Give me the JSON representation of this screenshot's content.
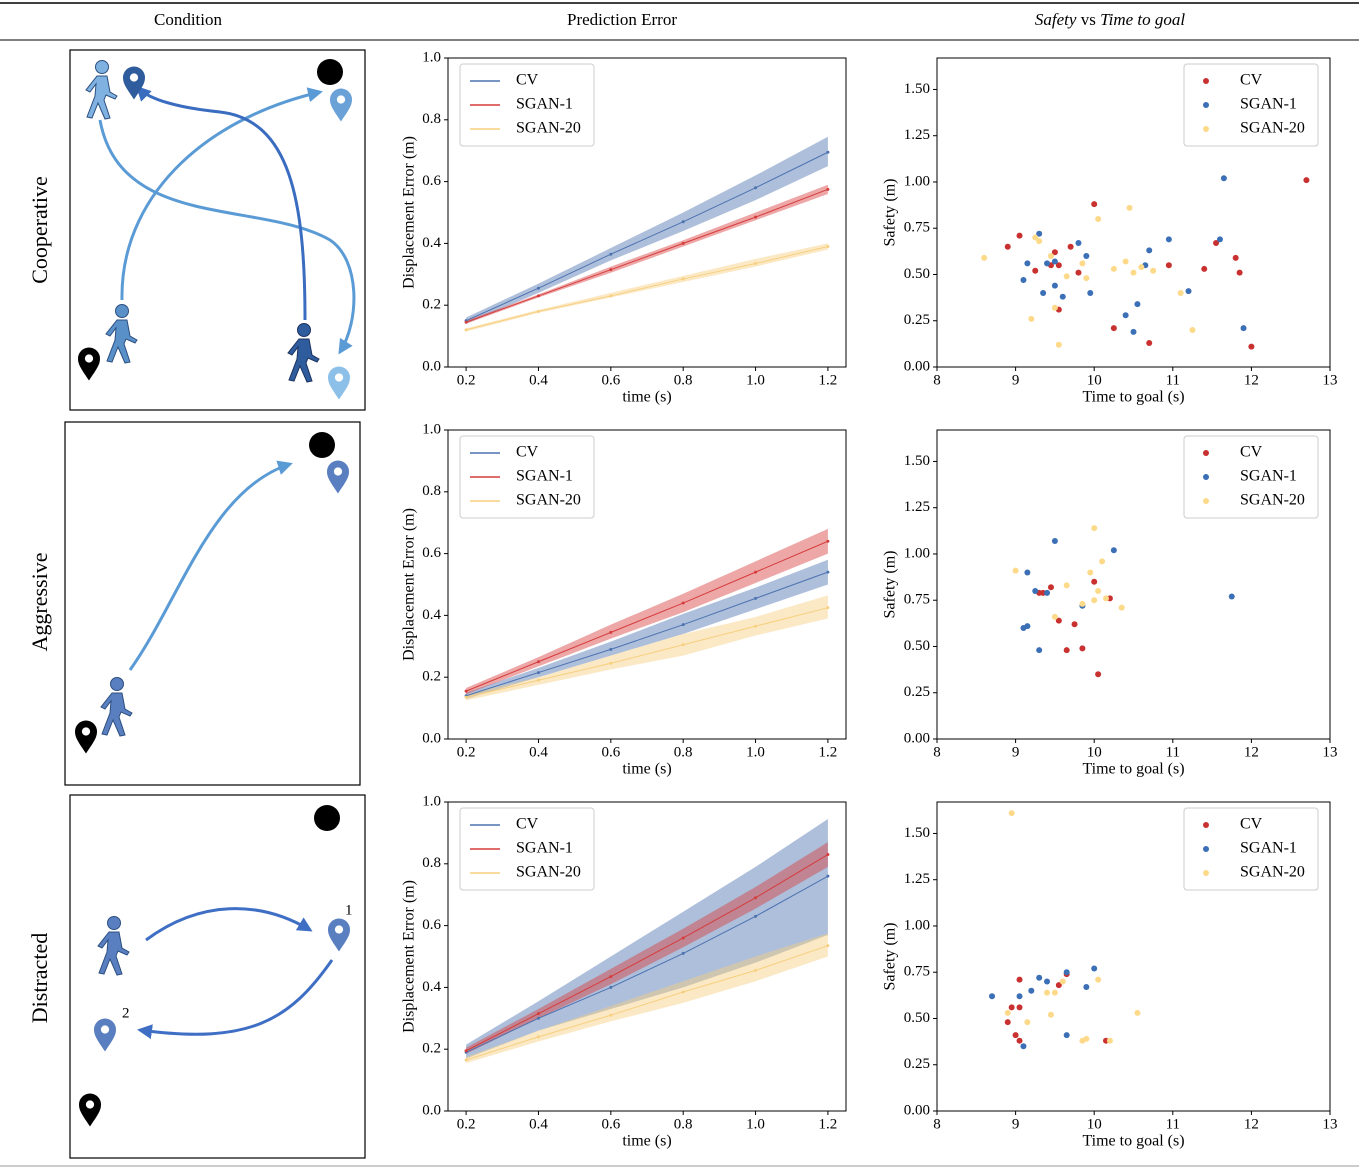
{
  "header": [
    "Condition",
    "Prediction Error",
    [
      "Safety",
      "vs",
      "Time to goal"
    ]
  ],
  "rows": [
    {
      "condition": "Cooperative"
    },
    {
      "condition": "Aggressive"
    },
    {
      "condition": "Distracted",
      "diagram_labels": [
        "1",
        "2"
      ]
    }
  ],
  "chart_data": [
    {
      "type": "line",
      "xlabel": "time (s)",
      "ylabel": "Displacement Error (m)",
      "legend": "upper left",
      "x": [
        0.2,
        0.4,
        0.6,
        0.8,
        1.0,
        1.2
      ],
      "xlim": [
        0.15,
        1.25
      ],
      "xticks": [
        0.2,
        0.4,
        0.6,
        0.8,
        {
          "value": 1.0,
          "label": "1.0"
        },
        1.2
      ],
      "ylim": [
        0,
        1
      ],
      "yticks": [
        {
          "value": 0,
          "label": "0.0"
        },
        0.2,
        0.4,
        0.6,
        0.8,
        {
          "value": 1,
          "label": "1.0"
        }
      ],
      "series": [
        {
          "name": "CV",
          "color": "#4c72b0",
          "values": [
            0.15,
            0.255,
            0.365,
            0.47,
            0.58,
            0.695
          ],
          "lower": [
            0.14,
            0.24,
            0.345,
            0.44,
            0.54,
            0.65
          ],
          "upper": [
            0.16,
            0.27,
            0.385,
            0.5,
            0.62,
            0.745
          ]
        },
        {
          "name": "SGAN-1",
          "color": "#d63c3c",
          "values": [
            0.145,
            0.23,
            0.315,
            0.4,
            0.485,
            0.575
          ],
          "lower": [
            0.14,
            0.225,
            0.305,
            0.39,
            0.475,
            0.56
          ],
          "upper": [
            0.15,
            0.235,
            0.325,
            0.41,
            0.5,
            0.59
          ]
        },
        {
          "name": "SGAN-20",
          "color": "#f7cf7f",
          "values": [
            0.12,
            0.18,
            0.23,
            0.285,
            0.335,
            0.39
          ],
          "lower": [
            0.115,
            0.175,
            0.225,
            0.275,
            0.325,
            0.38
          ],
          "upper": [
            0.125,
            0.185,
            0.24,
            0.295,
            0.35,
            0.4
          ]
        }
      ]
    },
    {
      "type": "scatter",
      "xlabel": "Time to goal (s)",
      "ylabel": "Safety (m)",
      "legend": "upper right",
      "xlim": [
        8,
        13
      ],
      "xticks": [
        8,
        9,
        10,
        11,
        12,
        13
      ],
      "ylim": [
        0,
        1.67
      ],
      "yticks": [
        {
          "value": 0,
          "label": "0.00"
        },
        {
          "value": 0.25,
          "label": "0.25"
        },
        {
          "value": 0.5,
          "label": "0.50"
        },
        {
          "value": 0.75,
          "label": "0.75"
        },
        {
          "value": 1,
          "label": "1.00"
        },
        {
          "value": 1.25,
          "label": "1.25"
        },
        {
          "value": 1.5,
          "label": "1.50"
        }
      ],
      "series": [
        {
          "name": "CV",
          "color": "#c8312f",
          "x": [
            8.9,
            9.05,
            9.25,
            9.45,
            9.5,
            9.55,
            9.7,
            9.8,
            10.0,
            10.25,
            10.7,
            10.95,
            11.4,
            11.55,
            11.8,
            11.85,
            12.0,
            12.7,
            9.55
          ],
          "values": [
            0.65,
            0.71,
            0.52,
            0.55,
            0.62,
            0.31,
            0.65,
            0.51,
            0.88,
            0.21,
            0.13,
            0.55,
            0.53,
            0.67,
            0.59,
            0.51,
            0.11,
            1.01,
            0.55
          ]
        },
        {
          "name": "SGAN-1",
          "color": "#3b6fb6",
          "x": [
            9.1,
            9.15,
            9.3,
            9.35,
            9.4,
            9.5,
            9.6,
            9.8,
            9.9,
            9.95,
            10.4,
            10.5,
            10.55,
            10.65,
            10.7,
            10.95,
            11.2,
            11.6,
            11.65,
            11.9,
            9.5
          ],
          "values": [
            0.47,
            0.56,
            0.72,
            0.4,
            0.56,
            0.44,
            0.38,
            0.67,
            0.6,
            0.4,
            0.28,
            0.19,
            0.34,
            0.55,
            0.63,
            0.69,
            0.41,
            0.69,
            1.02,
            0.21,
            0.57
          ]
        },
        {
          "name": "SGAN-20",
          "color": "#fdd98a",
          "x": [
            8.6,
            9.2,
            9.25,
            9.3,
            9.45,
            9.55,
            9.5,
            9.65,
            9.9,
            10.05,
            10.25,
            10.4,
            10.45,
            10.5,
            10.6,
            10.75,
            11.1,
            11.25,
            9.85
          ],
          "values": [
            0.59,
            0.26,
            0.7,
            0.68,
            0.6,
            0.12,
            0.32,
            0.49,
            0.48,
            0.8,
            0.53,
            0.57,
            0.86,
            0.51,
            0.54,
            0.52,
            0.4,
            0.2,
            0.56
          ]
        }
      ]
    },
    {
      "type": "line",
      "xlabel": "time (s)",
      "ylabel": "Displacement Error (m)",
      "legend": "upper left",
      "x": [
        0.2,
        0.4,
        0.6,
        0.8,
        1.0,
        1.2
      ],
      "xlim": [
        0.15,
        1.25
      ],
      "xticks": [
        0.2,
        0.4,
        0.6,
        0.8,
        {
          "value": 1.0,
          "label": "1.0"
        },
        1.2
      ],
      "ylim": [
        0,
        1
      ],
      "yticks": [
        {
          "value": 0,
          "label": "0.0"
        },
        0.2,
        0.4,
        0.6,
        0.8,
        {
          "value": 1,
          "label": "1.0"
        }
      ],
      "series": [
        {
          "name": "CV",
          "color": "#4c72b0",
          "values": [
            0.14,
            0.215,
            0.29,
            0.37,
            0.455,
            0.54
          ],
          "lower": [
            0.13,
            0.2,
            0.27,
            0.34,
            0.42,
            0.5
          ],
          "upper": [
            0.15,
            0.23,
            0.315,
            0.405,
            0.49,
            0.58
          ]
        },
        {
          "name": "SGAN-1",
          "color": "#d63c3c",
          "values": [
            0.155,
            0.25,
            0.345,
            0.44,
            0.54,
            0.64
          ],
          "lower": [
            0.145,
            0.235,
            0.325,
            0.41,
            0.505,
            0.6
          ],
          "upper": [
            0.165,
            0.265,
            0.37,
            0.47,
            0.575,
            0.68
          ]
        },
        {
          "name": "SGAN-20",
          "color": "#f7cf7f",
          "values": [
            0.135,
            0.19,
            0.245,
            0.305,
            0.365,
            0.425
          ],
          "lower": [
            0.125,
            0.175,
            0.225,
            0.27,
            0.335,
            0.39
          ],
          "upper": [
            0.145,
            0.2,
            0.27,
            0.34,
            0.395,
            0.465
          ]
        }
      ]
    },
    {
      "type": "scatter",
      "xlabel": "Time to goal (s)",
      "ylabel": "Safety (m)",
      "legend": "upper right",
      "xlim": [
        8,
        13
      ],
      "xticks": [
        8,
        9,
        10,
        11,
        12,
        13
      ],
      "ylim": [
        0,
        1.67
      ],
      "yticks": [
        {
          "value": 0,
          "label": "0.00"
        },
        {
          "value": 0.25,
          "label": "0.25"
        },
        {
          "value": 0.5,
          "label": "0.50"
        },
        {
          "value": 0.75,
          "label": "0.75"
        },
        {
          "value": 1,
          "label": "1.00"
        },
        {
          "value": 1.25,
          "label": "1.25"
        },
        {
          "value": 1.5,
          "label": "1.50"
        }
      ],
      "series": [
        {
          "name": "CV",
          "color": "#c8312f",
          "x": [
            9.3,
            9.45,
            9.55,
            9.65,
            9.75,
            9.85,
            10.0,
            10.05,
            10.2,
            9.35
          ],
          "values": [
            0.79,
            0.82,
            0.64,
            0.48,
            0.62,
            0.49,
            0.85,
            0.35,
            0.76,
            0.79
          ]
        },
        {
          "name": "SGAN-1",
          "color": "#3b6fb6",
          "x": [
            9.1,
            9.15,
            9.15,
            9.25,
            9.3,
            9.4,
            9.5,
            9.85,
            10.25,
            11.75
          ],
          "values": [
            0.6,
            0.61,
            0.9,
            0.8,
            0.48,
            0.79,
            1.07,
            0.72,
            1.02,
            0.77
          ]
        },
        {
          "name": "SGAN-20",
          "color": "#fdd98a",
          "x": [
            9.0,
            9.5,
            9.65,
            9.85,
            9.95,
            10.0,
            10.0,
            10.05,
            10.1,
            10.15,
            10.35
          ],
          "values": [
            0.91,
            0.66,
            0.83,
            0.73,
            0.9,
            0.75,
            1.14,
            0.8,
            0.96,
            0.76,
            0.71
          ]
        }
      ]
    },
    {
      "type": "line",
      "xlabel": "time (s)",
      "ylabel": "Displacement Error (m)",
      "legend": "upper left",
      "x": [
        0.2,
        0.4,
        0.6,
        0.8,
        1.0,
        1.2
      ],
      "xlim": [
        0.15,
        1.25
      ],
      "xticks": [
        0.2,
        0.4,
        0.6,
        0.8,
        {
          "value": 1.0,
          "label": "1.0"
        },
        1.2
      ],
      "ylim": [
        0,
        1
      ],
      "yticks": [
        {
          "value": 0,
          "label": "0.0"
        },
        0.2,
        0.4,
        0.6,
        0.8,
        {
          "value": 1,
          "label": "1.0"
        }
      ],
      "series": [
        {
          "name": "CV",
          "color": "#4c72b0",
          "values": [
            0.19,
            0.3,
            0.4,
            0.51,
            0.63,
            0.76
          ],
          "lower": [
            0.17,
            0.26,
            0.33,
            0.4,
            0.48,
            0.57
          ],
          "upper": [
            0.215,
            0.355,
            0.5,
            0.645,
            0.79,
            0.945
          ]
        },
        {
          "name": "SGAN-1",
          "color": "#d63c3c",
          "values": [
            0.195,
            0.315,
            0.435,
            0.56,
            0.69,
            0.83
          ],
          "lower": [
            0.185,
            0.3,
            0.41,
            0.53,
            0.655,
            0.79
          ],
          "upper": [
            0.205,
            0.33,
            0.46,
            0.59,
            0.725,
            0.87
          ]
        },
        {
          "name": "SGAN-20",
          "color": "#f7cf7f",
          "values": [
            0.165,
            0.24,
            0.31,
            0.385,
            0.455,
            0.535
          ],
          "lower": [
            0.155,
            0.225,
            0.29,
            0.35,
            0.42,
            0.5
          ],
          "upper": [
            0.175,
            0.26,
            0.34,
            0.42,
            0.5,
            0.575
          ]
        }
      ]
    },
    {
      "type": "scatter",
      "xlabel": "Time to goal (s)",
      "ylabel": "Safety (m)",
      "legend": "upper right",
      "xlim": [
        8,
        13
      ],
      "xticks": [
        8,
        9,
        10,
        11,
        12,
        13
      ],
      "ylim": [
        0,
        1.67
      ],
      "yticks": [
        {
          "value": 0,
          "label": "0.00"
        },
        {
          "value": 0.25,
          "label": "0.25"
        },
        {
          "value": 0.5,
          "label": "0.50"
        },
        {
          "value": 0.75,
          "label": "0.75"
        },
        {
          "value": 1,
          "label": "1.00"
        },
        {
          "value": 1.25,
          "label": "1.25"
        },
        {
          "value": 1.5,
          "label": "1.50"
        }
      ],
      "series": [
        {
          "name": "CV",
          "color": "#c8312f",
          "x": [
            8.9,
            8.95,
            9.0,
            9.05,
            9.05,
            9.05,
            9.55,
            9.65,
            10.15
          ],
          "values": [
            0.48,
            0.56,
            0.41,
            0.71,
            0.38,
            0.56,
            0.68,
            0.74,
            0.38
          ]
        },
        {
          "name": "SGAN-1",
          "color": "#3b6fb6",
          "x": [
            8.7,
            9.05,
            9.1,
            9.2,
            9.3,
            9.4,
            9.65,
            9.65,
            9.9,
            10.0
          ],
          "values": [
            0.62,
            0.62,
            0.35,
            0.65,
            0.72,
            0.7,
            0.41,
            0.75,
            0.67,
            0.77
          ]
        },
        {
          "name": "SGAN-20",
          "color": "#fdd98a",
          "x": [
            8.95,
            9.15,
            9.4,
            9.45,
            9.5,
            9.6,
            9.85,
            9.9,
            10.05,
            10.2,
            10.55,
            8.9
          ],
          "values": [
            1.61,
            0.48,
            0.64,
            0.52,
            0.64,
            0.7,
            0.38,
            0.39,
            0.71,
            0.38,
            0.53,
            0.53
          ]
        }
      ]
    }
  ]
}
